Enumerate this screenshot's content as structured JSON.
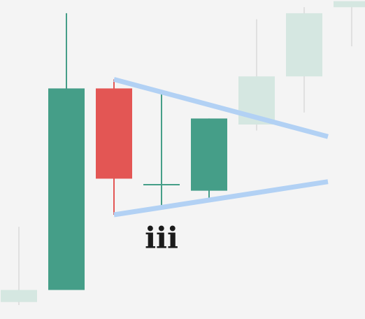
{
  "chart_data": {
    "type": "candlestick",
    "title": "",
    "xlabel": "",
    "ylabel": "",
    "grid": false,
    "ylim": [
      0,
      100
    ],
    "colors": {
      "background": "#f4f4f4",
      "bullish": "#459e88",
      "bearish": "#e35654",
      "faded": "#d5e7e1",
      "faded_wick": "#e0e0e0",
      "trendline": "#b2d1f4",
      "label": "#1b1b1b"
    },
    "candles": [
      {
        "index": 0,
        "open": 1,
        "close": 5,
        "high": 26,
        "low": 0,
        "style": "faded"
      },
      {
        "index": 1,
        "open": 5,
        "close": 72,
        "high": 97,
        "low": 5,
        "style": "bullish"
      },
      {
        "index": 2,
        "open": 72,
        "close": 42,
        "high": 75,
        "low": 30,
        "style": "bearish"
      },
      {
        "index": 3,
        "open": 40,
        "close": 40,
        "high": 71,
        "low": 33,
        "style": "bullish"
      },
      {
        "index": 4,
        "open": 38,
        "close": 62,
        "high": 62,
        "low": 35,
        "style": "bullish"
      },
      {
        "index": 5,
        "open": 60,
        "close": 76,
        "high": 95,
        "low": 58,
        "style": "faded"
      },
      {
        "index": 6,
        "open": 76,
        "close": 97,
        "high": 99,
        "low": 64,
        "style": "faded"
      },
      {
        "index": 7,
        "open": 99,
        "close": 101,
        "high": 101,
        "low": 86,
        "style": "faded"
      }
    ],
    "trendlines": [
      {
        "name": "upper",
        "from": {
          "x": 2,
          "y": 75
        },
        "to": {
          "x": 6.5,
          "y": 56
        }
      },
      {
        "name": "lower",
        "from": {
          "x": 2,
          "y": 30
        },
        "to": {
          "x": 6.5,
          "y": 41
        }
      }
    ],
    "annotations": [
      {
        "text": "iii",
        "x": 3,
        "y": 19
      }
    ]
  }
}
